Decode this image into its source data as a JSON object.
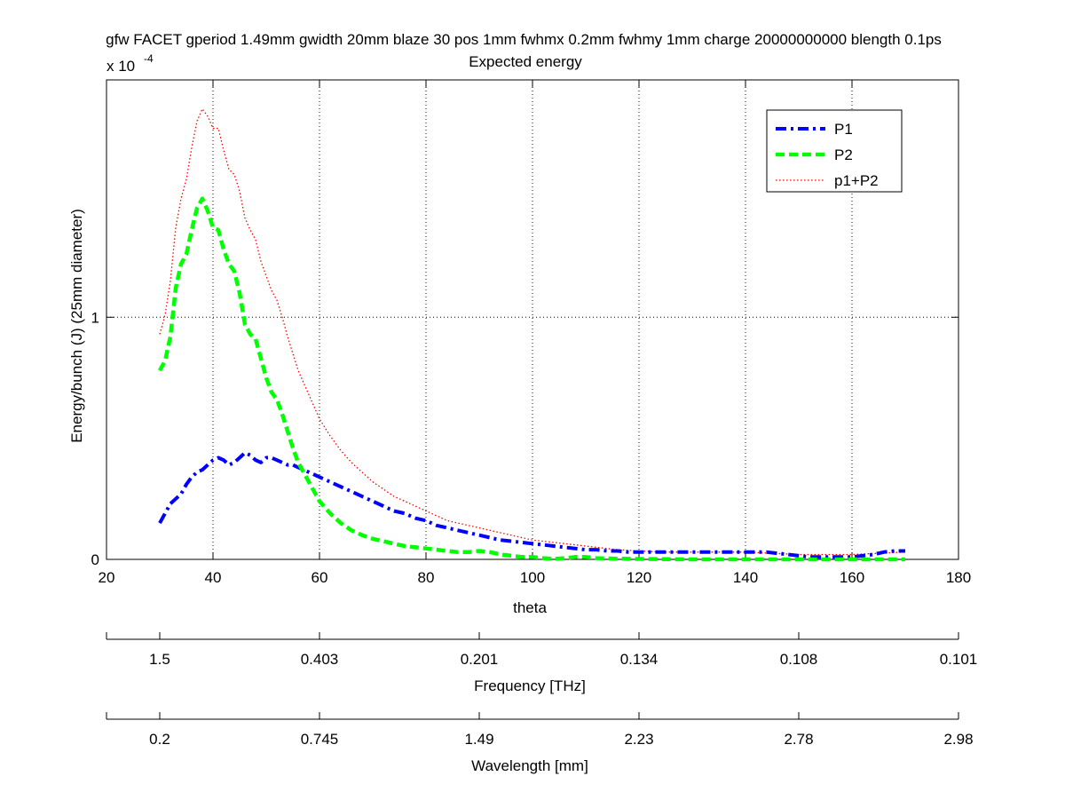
{
  "chart_data": {
    "type": "line",
    "title_line1": "gfw FACET gperiod 1.49mm gwidth 20mm blaze 30 pos 1mm fwhmx 0.2mm fwhmy 1mm charge 20000000000 blength 0.1ps",
    "title_line2": "Expected energy",
    "xlabel": "theta",
    "ylabel": "Energy/bunch (J) (25mm diameter)",
    "y_exponent_label": "x 10",
    "y_exponent_power": "-4",
    "xlim": [
      20,
      180
    ],
    "ylim": [
      0,
      1.98
    ],
    "x_ticks": [
      20,
      40,
      60,
      80,
      100,
      120,
      140,
      160,
      180
    ],
    "x_tick_labels": [
      "20",
      "40",
      "60",
      "80",
      "100",
      "120",
      "140",
      "160",
      "180"
    ],
    "y_ticks": [
      0,
      1
    ],
    "y_tick_labels": [
      "0",
      "1"
    ],
    "grid": "dotted",
    "legend_position": "top-right",
    "series": [
      {
        "name": "P1",
        "color": "#0000ff",
        "style": "dash-dot",
        "x": [
          30,
          31,
          32,
          33,
          34,
          35,
          36,
          37,
          38,
          39,
          40,
          41,
          42,
          43,
          44,
          45,
          46,
          47,
          48,
          49,
          50,
          51,
          52,
          53,
          54,
          55,
          56,
          57,
          58,
          59,
          60,
          62,
          64,
          66,
          68,
          70,
          72,
          74,
          76,
          78,
          80,
          82,
          84,
          86,
          88,
          90,
          92,
          94,
          96,
          98,
          100,
          102,
          104,
          106,
          108,
          110,
          112,
          114,
          116,
          118,
          120,
          124,
          128,
          132,
          136,
          140,
          144,
          148,
          152,
          156,
          160,
          162,
          164,
          166,
          168,
          170
        ],
        "y": [
          0.15,
          0.19,
          0.23,
          0.25,
          0.27,
          0.31,
          0.34,
          0.36,
          0.37,
          0.39,
          0.41,
          0.42,
          0.41,
          0.39,
          0.4,
          0.42,
          0.44,
          0.43,
          0.41,
          0.4,
          0.42,
          0.42,
          0.41,
          0.4,
          0.39,
          0.39,
          0.38,
          0.37,
          0.36,
          0.35,
          0.34,
          0.32,
          0.3,
          0.28,
          0.26,
          0.24,
          0.22,
          0.2,
          0.19,
          0.17,
          0.16,
          0.14,
          0.13,
          0.12,
          0.11,
          0.1,
          0.09,
          0.08,
          0.075,
          0.07,
          0.065,
          0.06,
          0.055,
          0.05,
          0.045,
          0.04,
          0.04,
          0.035,
          0.035,
          0.03,
          0.03,
          0.03,
          0.03,
          0.03,
          0.03,
          0.03,
          0.03,
          0.02,
          0.01,
          0.01,
          0.01,
          0.015,
          0.02,
          0.03,
          0.035,
          0.035
        ]
      },
      {
        "name": "P2",
        "color": "#00ff00",
        "style": "dashed",
        "x": [
          30,
          31,
          32,
          33,
          34,
          35,
          36,
          37,
          38,
          39,
          40,
          41,
          42,
          43,
          44,
          45,
          46,
          47,
          48,
          49,
          50,
          51,
          52,
          53,
          54,
          55,
          56,
          57,
          58,
          59,
          60,
          62,
          64,
          66,
          68,
          70,
          72,
          74,
          76,
          78,
          80,
          82,
          84,
          86,
          88,
          90,
          92,
          94,
          96,
          98,
          100,
          102,
          104,
          106,
          108,
          110,
          112,
          116,
          120,
          130,
          140,
          150,
          160,
          170
        ],
        "y": [
          0.78,
          0.82,
          0.92,
          1.12,
          1.22,
          1.26,
          1.36,
          1.45,
          1.49,
          1.44,
          1.37,
          1.36,
          1.28,
          1.22,
          1.19,
          1.1,
          0.97,
          0.93,
          0.91,
          0.83,
          0.75,
          0.69,
          0.66,
          0.6,
          0.53,
          0.46,
          0.4,
          0.36,
          0.32,
          0.28,
          0.24,
          0.19,
          0.15,
          0.12,
          0.1,
          0.085,
          0.075,
          0.065,
          0.055,
          0.05,
          0.045,
          0.04,
          0.035,
          0.03,
          0.03,
          0.035,
          0.03,
          0.02,
          0.015,
          0.01,
          0.01,
          0.005,
          0.002,
          0.005,
          0.01,
          0.01,
          0.005,
          0.003,
          0.002,
          0.0,
          0.0,
          0.0,
          0.0,
          0.0
        ]
      },
      {
        "name": "p1+P2",
        "color": "#ff0000",
        "style": "dotted",
        "x": [
          30,
          31,
          32,
          33,
          34,
          35,
          36,
          37,
          38,
          39,
          40,
          41,
          42,
          43,
          44,
          45,
          46,
          47,
          48,
          49,
          50,
          51,
          52,
          53,
          54,
          55,
          56,
          57,
          58,
          59,
          60,
          62,
          64,
          66,
          68,
          70,
          72,
          74,
          76,
          78,
          80,
          82,
          84,
          86,
          88,
          90,
          92,
          94,
          96,
          98,
          100,
          104,
          108,
          112,
          116,
          120,
          124,
          130,
          140,
          150,
          160,
          170
        ],
        "y": [
          0.93,
          1.01,
          1.15,
          1.37,
          1.49,
          1.57,
          1.7,
          1.81,
          1.86,
          1.83,
          1.78,
          1.78,
          1.69,
          1.61,
          1.59,
          1.52,
          1.41,
          1.36,
          1.32,
          1.23,
          1.17,
          1.11,
          1.07,
          1.0,
          0.92,
          0.85,
          0.78,
          0.73,
          0.68,
          0.63,
          0.58,
          0.51,
          0.45,
          0.4,
          0.36,
          0.32,
          0.29,
          0.26,
          0.24,
          0.22,
          0.2,
          0.18,
          0.16,
          0.15,
          0.14,
          0.13,
          0.12,
          0.11,
          0.1,
          0.09,
          0.08,
          0.07,
          0.06,
          0.05,
          0.04,
          0.035,
          0.03,
          0.03,
          0.03,
          0.02,
          0.02,
          0.03
        ]
      }
    ],
    "secondary_axes": [
      {
        "name": "frequency",
        "label": "Frequency [THz]",
        "tick_labels": [
          "1.5",
          "0.403",
          "0.201",
          "0.134",
          "0.108",
          "0.101"
        ]
      },
      {
        "name": "wavelength",
        "label": "Wavelength [mm]",
        "tick_labels": [
          "0.2",
          "0.745",
          "1.49",
          "2.23",
          "2.78",
          "2.98"
        ]
      }
    ]
  }
}
